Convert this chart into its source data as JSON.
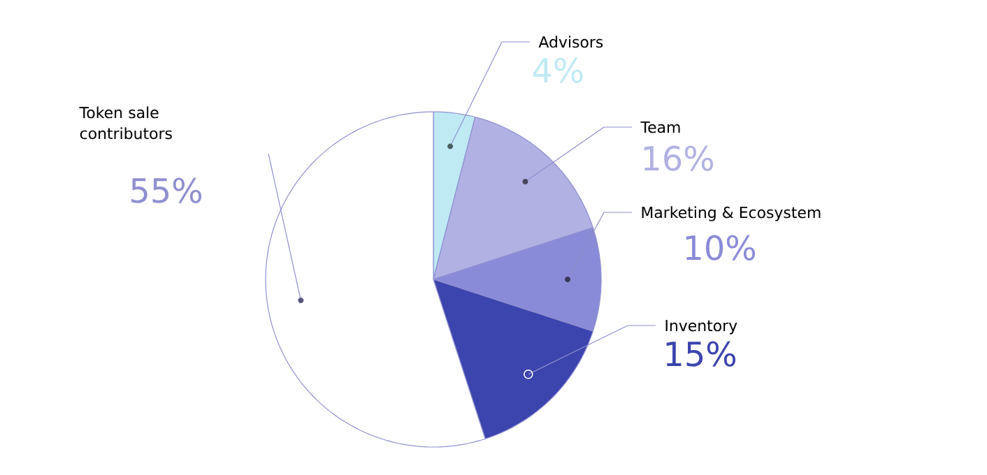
{
  "chart_data": {
    "type": "pie",
    "categories": [
      "Advisors",
      "Team",
      "Marketing & Ecosystem",
      "Inventory",
      "Token sale contributors"
    ],
    "values": [
      4,
      16,
      10,
      15,
      55
    ],
    "value_labels": [
      "4%",
      "16%",
      "10%",
      "15%",
      "55%"
    ],
    "colors": [
      "#bfeaf4",
      "#b1b1e4",
      "#8a8bd8",
      "#3c44ae",
      "#ffffff"
    ]
  }
}
